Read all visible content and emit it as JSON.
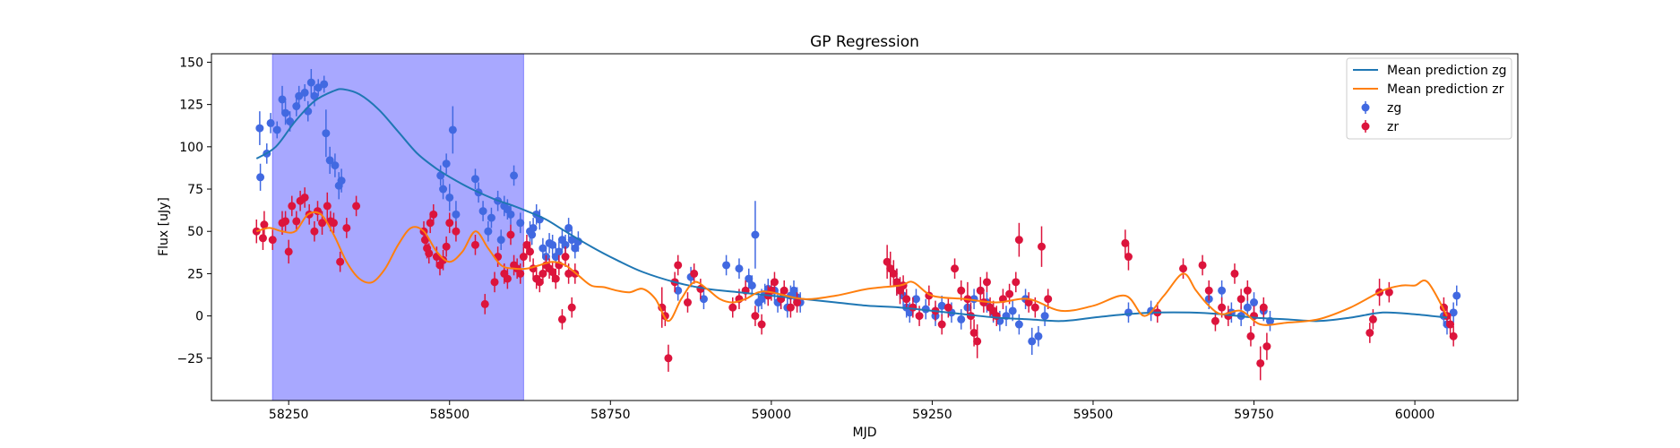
{
  "chart_data": {
    "type": "line",
    "title": "GP Regression",
    "xlabel": "MJD",
    "ylabel": "Flux [uJy]",
    "xlim": [
      58130,
      60160
    ],
    "ylim": [
      -50,
      155
    ],
    "x_ticks": [
      58250,
      58500,
      58750,
      59000,
      59250,
      59500,
      59750,
      60000
    ],
    "y_ticks": [
      -25,
      0,
      25,
      50,
      75,
      100,
      125,
      150
    ],
    "x_tick_labels": [
      "58250",
      "58500",
      "58750",
      "59000",
      "59250",
      "59500",
      "59750",
      "60000"
    ],
    "y_tick_labels": [
      "−25",
      "0",
      "25",
      "50",
      "75",
      "100",
      "125",
      "150"
    ],
    "grid": false,
    "legend_position": "top-right",
    "legend_entries": [
      "Mean prediction zg",
      "Mean prediction zr",
      "zg",
      "zr"
    ],
    "shaded_region": {
      "x0": 58225,
      "x1": 58615,
      "color": "#a8a8ff"
    },
    "colors": {
      "zg_line": "#1f77b4",
      "zr_line": "#ff7f0e",
      "zg_points": "#4169e1",
      "zr_points": "#dc143c"
    },
    "lines": [
      {
        "name": "Mean prediction zg",
        "x": [
          58200,
          58230,
          58260,
          58290,
          58320,
          58335,
          58360,
          58390,
          58420,
          58450,
          58480,
          58510,
          58540,
          58570,
          58600,
          58620,
          58650,
          58680,
          58720,
          58760,
          58800,
          58850,
          58900,
          58950,
          59000,
          59050,
          59100,
          59150,
          59200,
          59250,
          59300,
          59350,
          59400,
          59450,
          59500,
          59550,
          59600,
          59650,
          59700,
          59750,
          59800,
          59850,
          59900,
          59950,
          60000,
          60050
        ],
        "y": [
          93,
          100,
          115,
          127,
          133,
          134,
          131,
          122,
          109,
          96,
          87,
          80,
          74,
          69,
          65,
          62,
          57,
          50,
          41,
          33,
          26,
          20,
          16,
          14,
          12,
          10,
          8,
          6,
          5,
          3,
          1,
          -1,
          -2,
          -3,
          -1,
          1,
          2,
          2,
          1,
          -1,
          -2,
          -3,
          -1,
          2,
          1,
          -1
        ]
      },
      {
        "name": "Mean prediction zr",
        "x": [
          58200,
          58220,
          58240,
          58260,
          58280,
          58300,
          58320,
          58340,
          58360,
          58380,
          58400,
          58420,
          58440,
          58460,
          58480,
          58500,
          58520,
          58540,
          58560,
          58580,
          58600,
          58620,
          58640,
          58660,
          58680,
          58700,
          58720,
          58740,
          58760,
          58780,
          58800,
          58820,
          58840,
          58860,
          58880,
          58900,
          58920,
          58940,
          58960,
          58980,
          59000,
          59050,
          59100,
          59150,
          59200,
          59220,
          59250,
          59300,
          59350,
          59400,
          59450,
          59500,
          59550,
          59580,
          59610,
          59640,
          59660,
          59680,
          59700,
          59730,
          59760,
          59800,
          59850,
          59900,
          59950,
          59980,
          60000,
          60020,
          60050
        ],
        "y": [
          50,
          52,
          50,
          50,
          60,
          60,
          48,
          32,
          22,
          20,
          28,
          42,
          52,
          50,
          38,
          32,
          38,
          50,
          40,
          30,
          28,
          28,
          30,
          32,
          30,
          24,
          18,
          17,
          15,
          14,
          16,
          10,
          -3,
          10,
          20,
          16,
          10,
          8,
          10,
          14,
          14,
          10,
          12,
          16,
          18,
          20,
          12,
          10,
          8,
          10,
          3,
          6,
          12,
          0,
          12,
          25,
          15,
          6,
          1,
          3,
          -5,
          -4,
          -2,
          5,
          15,
          18,
          18,
          20,
          0
        ]
      }
    ],
    "series": [
      {
        "name": "zg",
        "x": [
          58205,
          58206,
          58216,
          58222,
          58232,
          58240,
          58245,
          58252,
          58262,
          58266,
          58275,
          58280,
          58285,
          58290,
          58296,
          58305,
          58308,
          58314,
          58322,
          58328,
          58332,
          58486,
          58490,
          58495,
          58500,
          58505,
          58510,
          58540,
          58545,
          58552,
          58560,
          58565,
          58575,
          58580,
          58585,
          58590,
          58595,
          58600,
          58610,
          58625,
          58628,
          58630,
          58635,
          58640,
          58645,
          58650,
          58655,
          58660,
          58665,
          58670,
          58675,
          58680,
          58685,
          58690,
          58695,
          58700,
          58855,
          58875,
          58895,
          58930,
          58950,
          58965,
          58970,
          58975,
          58980,
          58985,
          58990,
          58995,
          59005,
          59010,
          59015,
          59025,
          59030,
          59035,
          59040,
          59045,
          59195,
          59200,
          59205,
          59210,
          59215,
          59225,
          59240,
          59255,
          59265,
          59280,
          59295,
          59305,
          59315,
          59325,
          59335,
          59345,
          59355,
          59365,
          59375,
          59385,
          59395,
          59405,
          59415,
          59425,
          59555,
          59590,
          59680,
          59700,
          59715,
          59730,
          59740,
          59750,
          59765,
          59775,
          60045,
          60050,
          60060,
          60065
        ],
        "y": [
          111,
          82,
          96,
          114,
          110,
          128,
          120,
          115,
          124,
          130,
          132,
          121,
          138,
          130,
          135,
          137,
          108,
          92,
          89,
          77,
          80,
          83,
          75,
          90,
          70,
          110,
          60,
          81,
          73,
          62,
          50,
          58,
          68,
          45,
          65,
          63,
          60,
          83,
          55,
          50,
          48,
          52,
          60,
          57,
          40,
          35,
          43,
          42,
          35,
          38,
          45,
          42,
          52,
          45,
          40,
          44,
          15,
          23,
          10,
          30,
          28,
          22,
          18,
          48,
          8,
          10,
          13,
          16,
          15,
          8,
          10,
          5,
          12,
          15,
          11,
          8,
          20,
          16,
          12,
          5,
          2,
          10,
          4,
          0,
          6,
          2,
          -2,
          5,
          10,
          15,
          8,
          2,
          -3,
          0,
          3,
          -5,
          10,
          -15,
          -12,
          0,
          2,
          3,
          10,
          15,
          2,
          0,
          5,
          8,
          3,
          -3,
          0,
          -5,
          2,
          12
        ],
        "err": [
          10,
          8,
          6,
          6,
          5,
          8,
          7,
          6,
          6,
          6,
          5,
          6,
          8,
          6,
          5,
          5,
          14,
          8,
          7,
          8,
          7,
          6,
          6,
          6,
          8,
          14,
          8,
          6,
          6,
          6,
          6,
          6,
          6,
          6,
          6,
          6,
          6,
          6,
          6,
          6,
          6,
          6,
          6,
          6,
          6,
          6,
          6,
          6,
          6,
          6,
          6,
          6,
          6,
          6,
          6,
          6,
          6,
          6,
          6,
          6,
          6,
          6,
          6,
          20,
          6,
          6,
          6,
          6,
          6,
          6,
          6,
          6,
          6,
          6,
          6,
          6,
          8,
          6,
          6,
          6,
          6,
          6,
          6,
          6,
          6,
          6,
          6,
          6,
          6,
          6,
          6,
          6,
          6,
          6,
          6,
          6,
          6,
          8,
          6,
          6,
          6,
          6,
          6,
          6,
          6,
          6,
          6,
          6,
          6,
          6,
          6,
          6,
          6,
          6
        ]
      },
      {
        "name": "zr",
        "x": [
          58200,
          58210,
          58212,
          58225,
          58240,
          58245,
          58250,
          58255,
          58262,
          58268,
          58275,
          58282,
          58290,
          58295,
          58302,
          58310,
          58315,
          58320,
          58330,
          58340,
          58355,
          58460,
          58462,
          58465,
          58468,
          58470,
          58475,
          58480,
          58485,
          58490,
          58495,
          58500,
          58510,
          58540,
          58555,
          58570,
          58575,
          58585,
          58590,
          58595,
          58600,
          58605,
          58610,
          58615,
          58620,
          58625,
          58630,
          58635,
          58640,
          58645,
          58650,
          58655,
          58660,
          58665,
          58670,
          58675,
          58680,
          58685,
          58690,
          58695,
          58830,
          58835,
          58840,
          58850,
          58855,
          58870,
          58880,
          58890,
          58940,
          58950,
          58960,
          58975,
          58985,
          58995,
          59000,
          59005,
          59015,
          59020,
          59030,
          59040,
          59180,
          59185,
          59190,
          59195,
          59200,
          59205,
          59210,
          59220,
          59230,
          59245,
          59255,
          59265,
          59275,
          59285,
          59295,
          59305,
          59310,
          59315,
          59320,
          59325,
          59330,
          59335,
          59340,
          59345,
          59350,
          59360,
          59370,
          59380,
          59385,
          59400,
          59410,
          59420,
          59430,
          59550,
          59555,
          59600,
          59640,
          59670,
          59680,
          59690,
          59700,
          59710,
          59720,
          59730,
          59740,
          59745,
          59750,
          59760,
          59765,
          59770,
          59930,
          59935,
          59945,
          59960,
          60045,
          60050,
          60055,
          60060
        ],
        "y": [
          50,
          46,
          54,
          45,
          55,
          56,
          38,
          65,
          56,
          68,
          70,
          60,
          50,
          62,
          55,
          65,
          56,
          55,
          32,
          52,
          65,
          50,
          45,
          40,
          37,
          55,
          60,
          35,
          30,
          33,
          41,
          55,
          50,
          42,
          7,
          20,
          35,
          25,
          22,
          48,
          30,
          28,
          25,
          35,
          42,
          38,
          28,
          22,
          20,
          25,
          30,
          28,
          26,
          22,
          30,
          -2,
          35,
          25,
          5,
          25,
          5,
          0,
          -25,
          20,
          30,
          8,
          25,
          16,
          5,
          10,
          15,
          0,
          -5,
          12,
          15,
          20,
          10,
          15,
          5,
          8,
          32,
          28,
          25,
          20,
          15,
          18,
          10,
          5,
          0,
          12,
          3,
          -5,
          5,
          28,
          15,
          10,
          0,
          -10,
          -15,
          15,
          8,
          20,
          5,
          3,
          0,
          10,
          13,
          20,
          45,
          8,
          5,
          41,
          10,
          43,
          35,
          2,
          28,
          30,
          15,
          -3,
          5,
          0,
          25,
          10,
          15,
          -12,
          0,
          -28,
          5,
          -18,
          -10,
          -2,
          14,
          14,
          5,
          0,
          -5,
          -12
        ],
        "err": [
          7,
          7,
          8,
          6,
          7,
          6,
          7,
          6,
          6,
          6,
          6,
          6,
          6,
          6,
          7,
          8,
          6,
          6,
          6,
          6,
          6,
          6,
          6,
          6,
          6,
          6,
          6,
          6,
          6,
          6,
          6,
          6,
          6,
          6,
          6,
          6,
          6,
          6,
          6,
          6,
          6,
          6,
          6,
          6,
          6,
          6,
          6,
          6,
          6,
          6,
          6,
          6,
          6,
          6,
          6,
          6,
          6,
          6,
          6,
          6,
          12,
          6,
          8,
          6,
          6,
          6,
          6,
          6,
          6,
          6,
          6,
          6,
          6,
          6,
          6,
          6,
          6,
          6,
          6,
          6,
          10,
          10,
          8,
          8,
          8,
          6,
          6,
          6,
          6,
          6,
          6,
          6,
          6,
          6,
          6,
          10,
          8,
          8,
          10,
          8,
          6,
          6,
          6,
          6,
          6,
          6,
          6,
          6,
          10,
          6,
          6,
          12,
          6,
          8,
          8,
          6,
          6,
          6,
          6,
          6,
          6,
          6,
          6,
          6,
          6,
          6,
          6,
          10,
          6,
          8,
          6,
          6,
          8,
          6,
          6,
          6,
          6,
          6
        ]
      }
    ]
  }
}
